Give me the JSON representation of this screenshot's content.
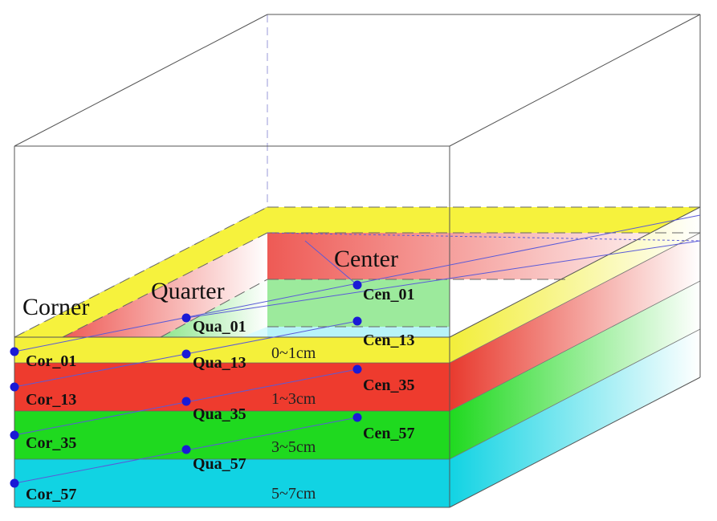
{
  "region_labels": {
    "corner": "Corner",
    "quarter": "Quarter",
    "center": "Center"
  },
  "layers": [
    {
      "depth": "0~1cm",
      "color": "#f4f03a"
    },
    {
      "depth": "1~3cm",
      "color": "#ee3b2e"
    },
    {
      "depth": "3~5cm",
      "color": "#1fd91f"
    },
    {
      "depth": "5~7cm",
      "color": "#11d3e3"
    }
  ],
  "measurement_points": {
    "corner": [
      "Cor_01",
      "Cor_13",
      "Cor_35",
      "Cor_57"
    ],
    "quarter": [
      "Qua_01",
      "Qua_13",
      "Qua_35",
      "Qua_57"
    ],
    "center": [
      "Cen_01",
      "Cen_13",
      "Cen_35",
      "Cen_57"
    ]
  },
  "colors": {
    "point": "#1a1ad6",
    "guide_line": "#5a5ad8",
    "box_edge": "#555555"
  }
}
